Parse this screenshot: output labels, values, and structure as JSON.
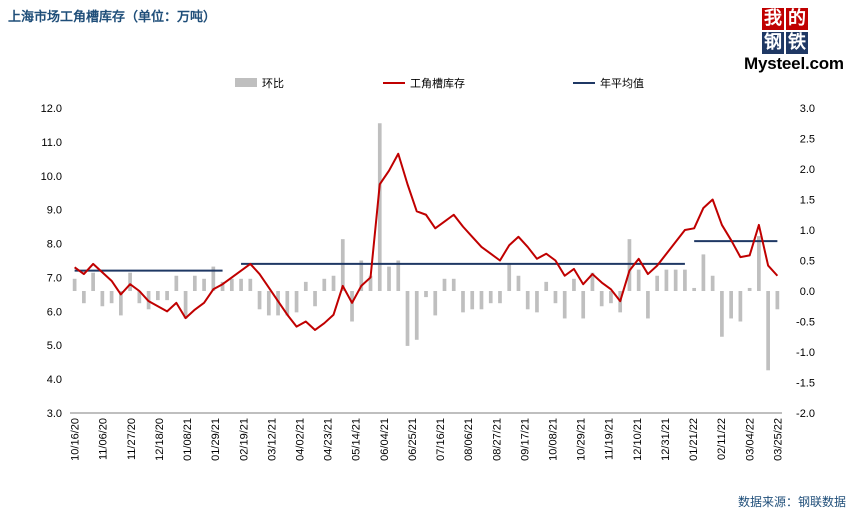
{
  "title": "上海市场工角槽库存（单位：万吨）",
  "logo": {
    "top_chars": [
      "我",
      "的"
    ],
    "bottom_chars": [
      "钢",
      "铁"
    ],
    "word": "Mysteel.com"
  },
  "source": "数据来源：钢联数据",
  "colors": {
    "bar": "#bfbfbf",
    "line": "#c00000",
    "avg": "#1f3864",
    "title": "#1f4e79"
  },
  "chart_data": {
    "type": "bar+line",
    "legend": [
      "环比",
      "工角槽库存",
      "年平均值"
    ],
    "legend_position": "top",
    "x_tick_labels": [
      "10/16/20",
      "11/06/20",
      "11/27/20",
      "12/18/20",
      "01/08/21",
      "01/29/21",
      "02/19/21",
      "03/12/21",
      "04/02/21",
      "04/23/21",
      "05/14/21",
      "06/04/21",
      "06/25/21",
      "07/16/21",
      "08/06/21",
      "08/27/21",
      "09/17/21",
      "10/08/21",
      "10/29/21",
      "11/19/21",
      "12/10/21",
      "12/31/21",
      "01/21/22",
      "02/11/22",
      "03/04/22",
      "03/25/22"
    ],
    "y_left": {
      "min": 3.0,
      "max": 12.0,
      "step": 1.0,
      "tick_labels": [
        "3.0",
        "4.0",
        "5.0",
        "6.0",
        "7.0",
        "8.0",
        "9.0",
        "10.0",
        "11.0",
        "12.0"
      ]
    },
    "y_right": {
      "min": -2.0,
      "max": 3.0,
      "step": 0.5,
      "tick_labels": [
        "-2.0",
        "-1.5",
        "-1.0",
        "-0.5",
        "0.0",
        "0.5",
        "1.0",
        "1.5",
        "2.0",
        "2.5",
        "3.0"
      ]
    },
    "grid": false,
    "inventory": [
      7.3,
      7.1,
      7.4,
      7.15,
      6.9,
      6.5,
      6.8,
      6.6,
      6.3,
      6.15,
      6.0,
      6.25,
      5.8,
      6.05,
      6.25,
      6.65,
      6.8,
      7.0,
      7.2,
      7.4,
      7.1,
      6.7,
      6.3,
      5.9,
      5.55,
      5.7,
      5.45,
      5.65,
      5.9,
      6.75,
      6.25,
      6.75,
      7.0,
      9.75,
      10.15,
      10.65,
      9.75,
      8.95,
      8.85,
      8.45,
      8.65,
      8.85,
      8.5,
      8.2,
      7.9,
      7.7,
      7.5,
      7.95,
      8.2,
      7.9,
      7.55,
      7.7,
      7.5,
      7.05,
      7.25,
      6.8,
      7.1,
      6.85,
      6.65,
      6.3,
      7.2,
      7.55,
      7.1,
      7.35,
      7.7,
      8.05,
      8.4,
      8.45,
      9.05,
      9.3,
      8.55,
      8.1,
      7.6,
      7.65,
      8.55,
      7.35,
      7.05
    ],
    "wow_change": [
      0.2,
      -0.2,
      0.3,
      -0.25,
      -0.2,
      -0.4,
      0.3,
      -0.2,
      -0.3,
      -0.15,
      -0.15,
      0.25,
      -0.45,
      0.25,
      0.2,
      0.4,
      0.15,
      0.2,
      0.2,
      0.2,
      -0.3,
      -0.4,
      -0.4,
      -0.4,
      -0.35,
      0.15,
      -0.25,
      0.2,
      0.25,
      0.85,
      -0.5,
      0.5,
      0.25,
      2.75,
      0.4,
      0.5,
      -0.9,
      -0.8,
      -0.1,
      -0.4,
      0.2,
      0.2,
      -0.35,
      -0.3,
      -0.3,
      -0.2,
      -0.2,
      0.45,
      0.25,
      -0.3,
      -0.35,
      0.15,
      -0.2,
      -0.45,
      0.2,
      -0.45,
      0.3,
      -0.25,
      -0.2,
      -0.35,
      0.85,
      0.35,
      -0.45,
      0.25,
      0.35,
      0.35,
      0.35,
      0.05,
      0.6,
      0.25,
      -0.75,
      -0.45,
      -0.5,
      0.05,
      0.9,
      -1.3,
      -0.3
    ],
    "annual_average": [
      {
        "name": "2020",
        "start_index": 0,
        "end_index": 16,
        "value": 7.2
      },
      {
        "name": "2021",
        "start_index": 18,
        "end_index": 66,
        "value": 7.4
      },
      {
        "name": "2022",
        "start_index": 67,
        "end_index": 76,
        "value": 8.07
      }
    ]
  }
}
